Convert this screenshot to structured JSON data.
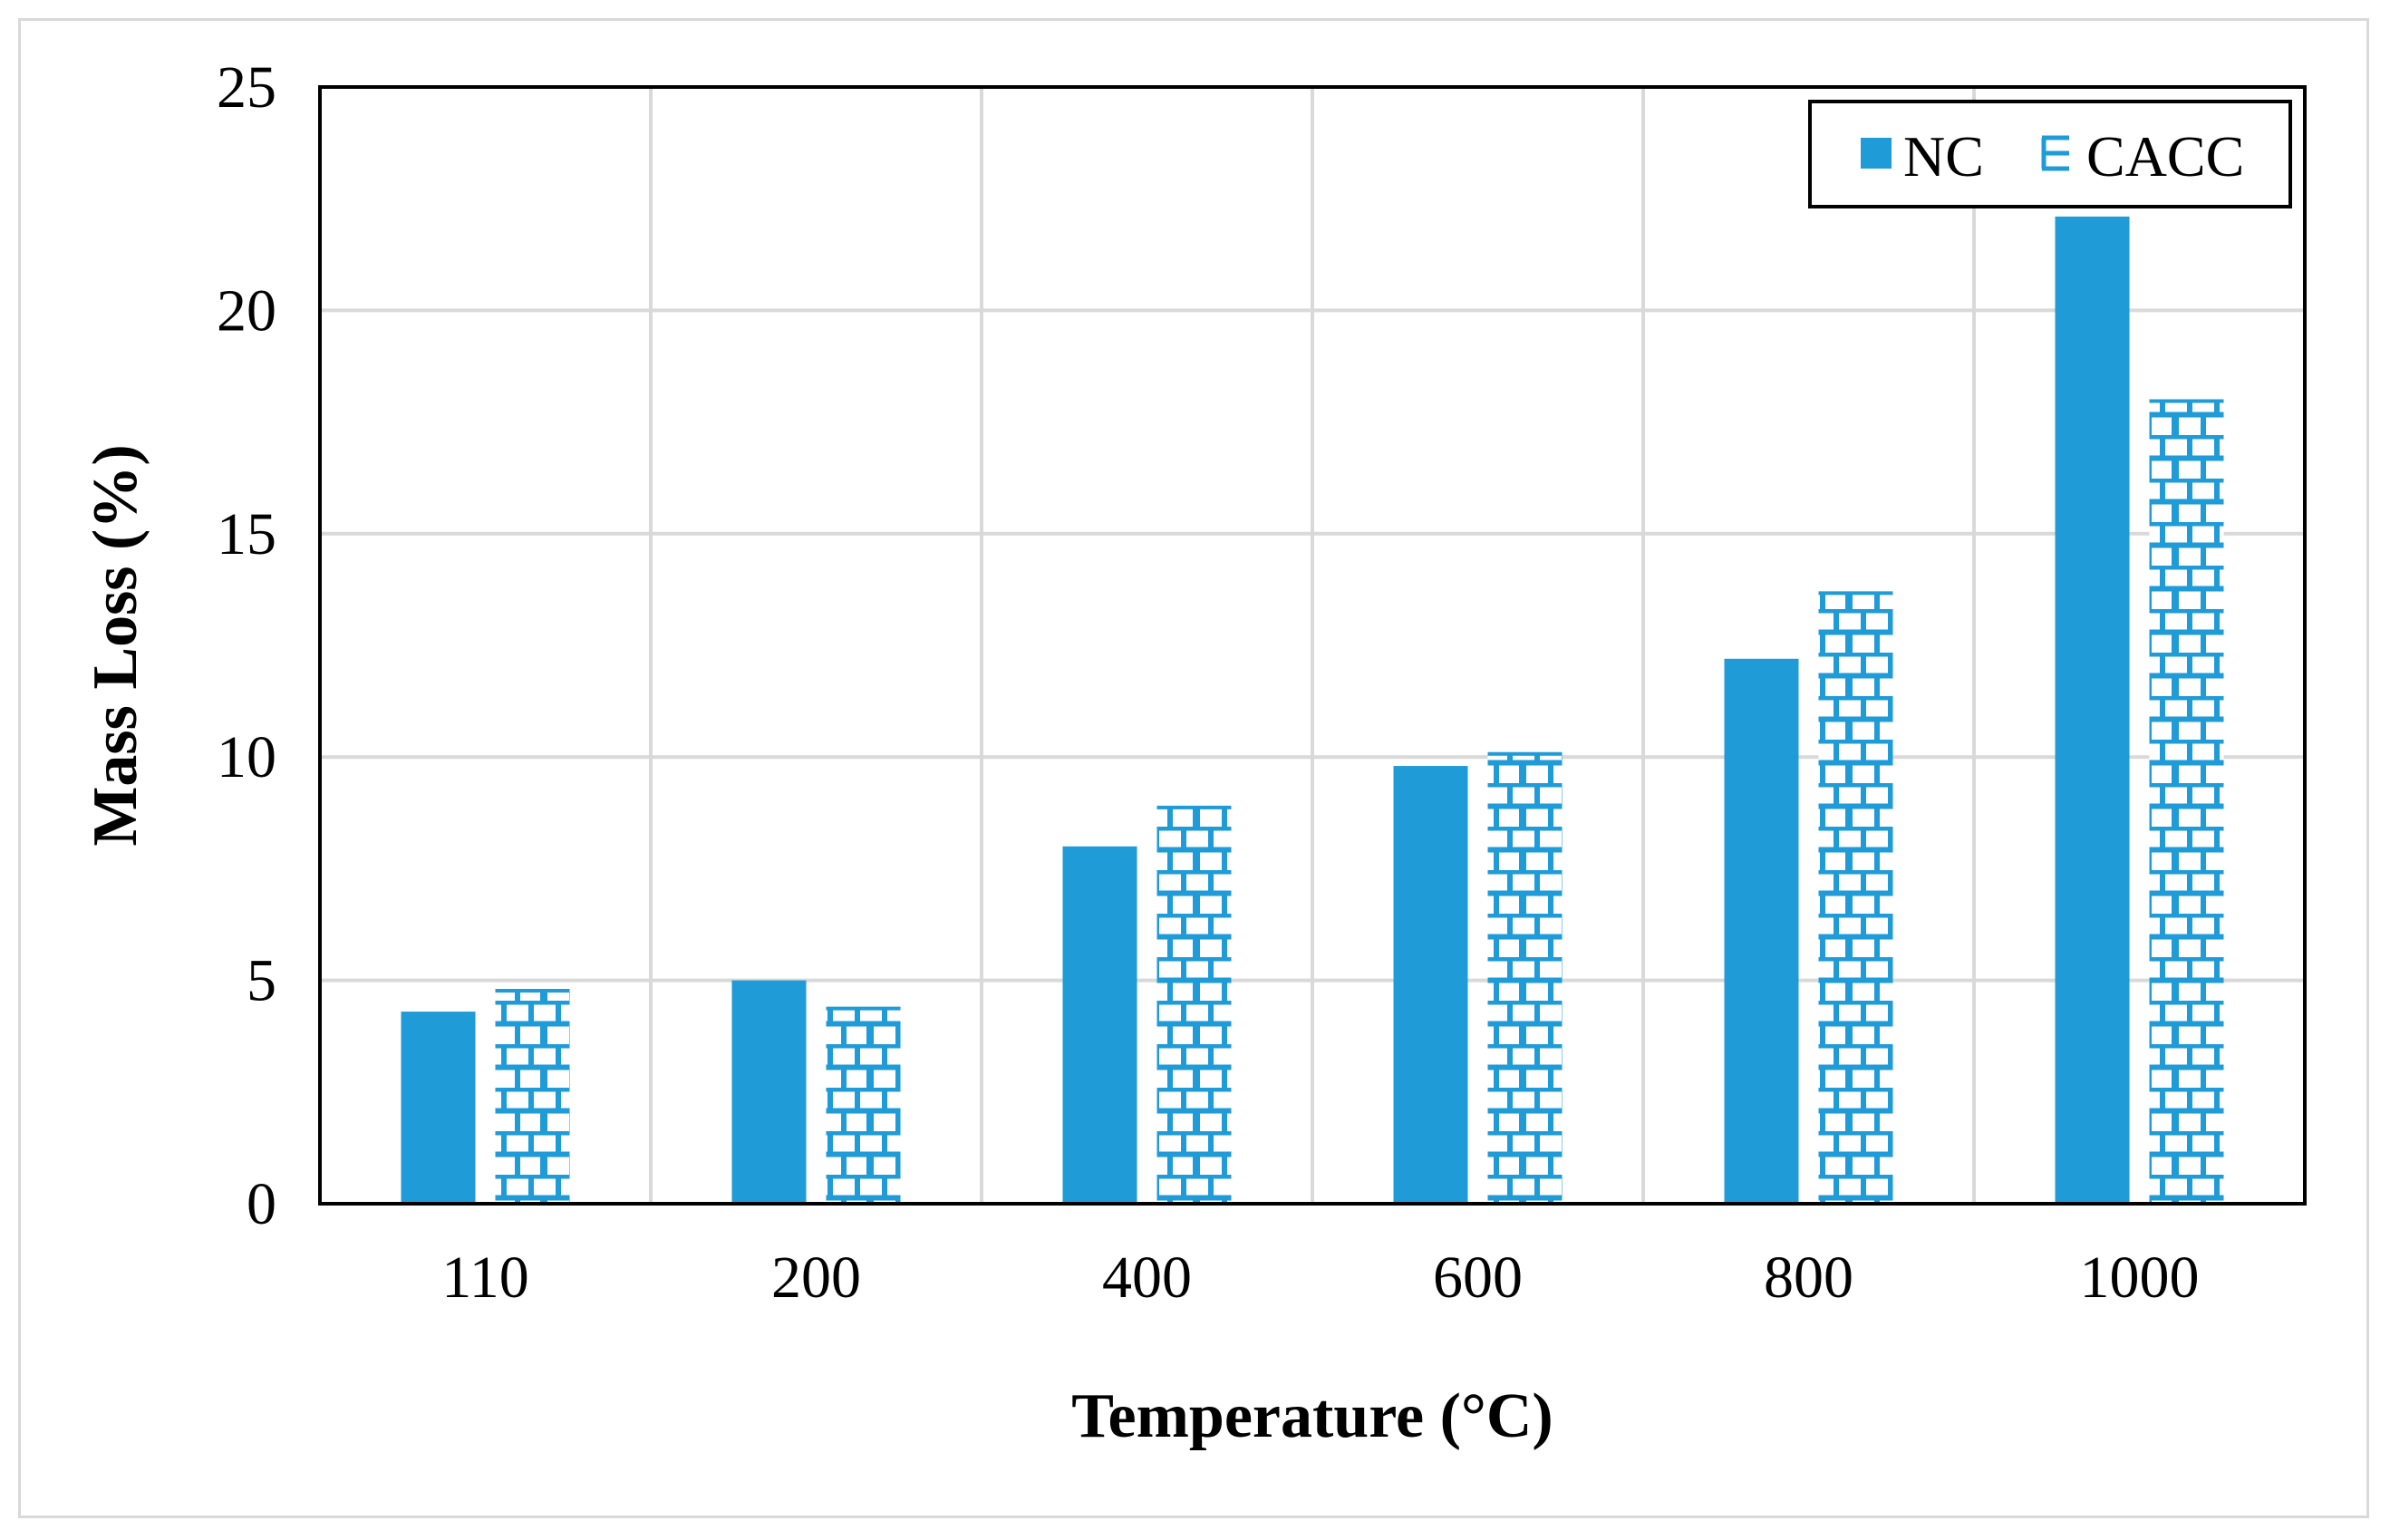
{
  "chart_data": {
    "type": "bar",
    "title": "",
    "xlabel": "Temperature (°C)",
    "ylabel": "Mass Loss (%)",
    "categories": [
      "110",
      "200",
      "400",
      "600",
      "800",
      "1000"
    ],
    "series": [
      {
        "name": "NC",
        "pattern": "solid",
        "color": "#1f9bd7",
        "values": [
          4.3,
          5.0,
          8.0,
          9.8,
          12.2,
          22.1
        ]
      },
      {
        "name": "CACC",
        "pattern": "brick",
        "color": "#1f9bd7",
        "values": [
          4.8,
          4.4,
          8.9,
          10.1,
          13.7,
          18.0
        ]
      }
    ],
    "ylim": [
      0,
      25
    ],
    "yticks": [
      0,
      5,
      10,
      15,
      20,
      25
    ],
    "grid": true,
    "legend_position": "top-right"
  }
}
